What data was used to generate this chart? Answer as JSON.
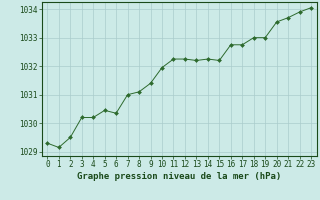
{
  "x": [
    0,
    1,
    2,
    3,
    4,
    5,
    6,
    7,
    8,
    9,
    10,
    11,
    12,
    13,
    14,
    15,
    16,
    17,
    18,
    19,
    20,
    21,
    22,
    23
  ],
  "y": [
    1029.3,
    1029.15,
    1029.5,
    1030.2,
    1030.2,
    1030.45,
    1030.35,
    1031.0,
    1031.1,
    1031.4,
    1031.95,
    1032.25,
    1032.25,
    1032.2,
    1032.25,
    1032.2,
    1032.75,
    1032.75,
    1033.0,
    1033.0,
    1033.55,
    1033.7,
    1033.9,
    1034.05
  ],
  "line_color": "#2d6a2d",
  "marker": "D",
  "marker_size": 2.0,
  "background_color": "#cceae7",
  "grid_color": "#aacccc",
  "xlabel": "Graphe pression niveau de la mer (hPa)",
  "xlabel_color": "#1a4a1a",
  "xlabel_fontsize": 6.5,
  "tick_color": "#1a4a1a",
  "tick_fontsize": 5.5,
  "ylim": [
    1028.85,
    1034.25
  ],
  "yticks": [
    1029,
    1030,
    1031,
    1032,
    1033,
    1034
  ],
  "xlim": [
    -0.5,
    23.5
  ],
  "xticks": [
    0,
    1,
    2,
    3,
    4,
    5,
    6,
    7,
    8,
    9,
    10,
    11,
    12,
    13,
    14,
    15,
    16,
    17,
    18,
    19,
    20,
    21,
    22,
    23
  ]
}
